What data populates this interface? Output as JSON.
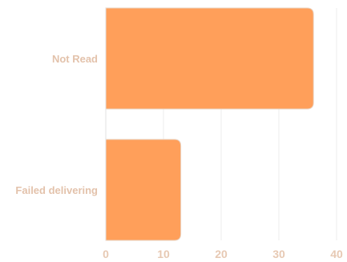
{
  "chart_data": {
    "type": "bar",
    "orientation": "horizontal",
    "categories": [
      "Not Read",
      "Failed delivering"
    ],
    "values": [
      36,
      13
    ],
    "xlim": [
      0,
      40
    ],
    "x_ticks": [
      "0",
      "10",
      "20",
      "30",
      "40"
    ],
    "grid": true,
    "legend": "none",
    "colors": {
      "bar": "#ff9f5a",
      "bar_border": "#ead3c2",
      "label": "#e3c2ab",
      "grid": "#ededed"
    }
  }
}
